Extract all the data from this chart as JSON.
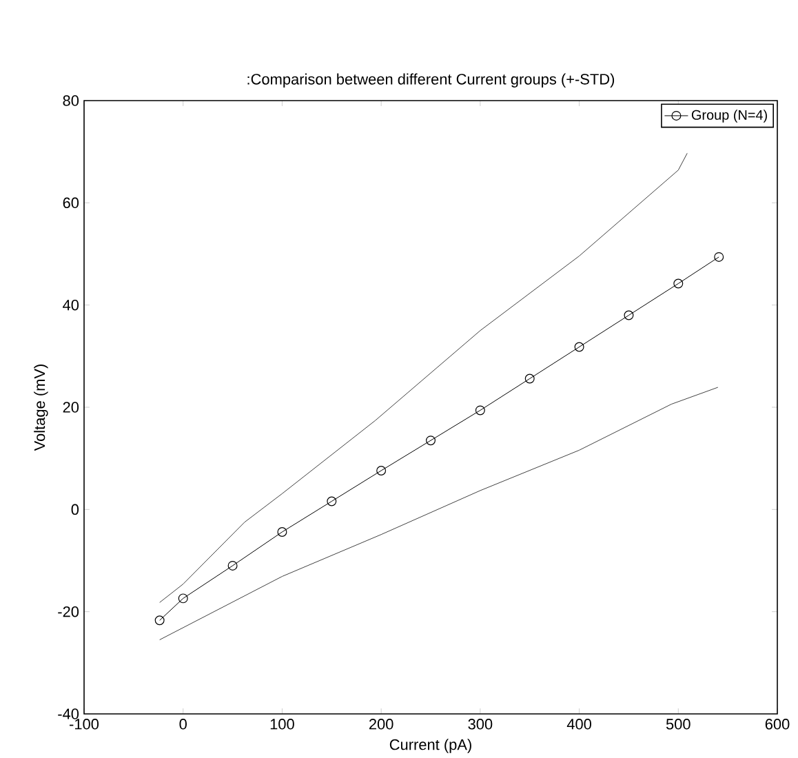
{
  "chart_data": {
    "type": "line",
    "title": ":Comparison between different Current groups (+-STD)",
    "xlabel": "Current (pA)",
    "ylabel": "Voltage (mV)",
    "xlim": [
      -100,
      600
    ],
    "ylim": [
      -40,
      80
    ],
    "xticks": [
      -100,
      0,
      100,
      200,
      300,
      400,
      500,
      600
    ],
    "yticks": [
      -40,
      -20,
      0,
      20,
      40,
      60,
      80
    ],
    "grid": false,
    "legend": "top right",
    "series": [
      {
        "name": "Group  (N=4)",
        "color": "#000000",
        "marker": "circle",
        "x": [
          -23.7,
          0,
          50,
          100,
          150,
          200,
          250,
          300,
          350,
          400,
          450,
          500,
          541
        ],
        "values": [
          -21.7,
          -17.4,
          -11,
          -4.4,
          1.6,
          7.6,
          13.5,
          19.4,
          25.6,
          31.8,
          38,
          44.2,
          49.4
        ]
      },
      {
        "color": "#404040",
        "marker": "none",
        "x": [
          -23.7,
          0,
          62,
          100,
          194,
          300,
          400,
          500,
          509
        ],
        "values": [
          -18.2,
          -14.6,
          -2.5,
          3.1,
          17.4,
          35,
          49.6,
          66.4,
          69.7
        ]
      },
      {
        "color": "#404040",
        "marker": "none",
        "x": [
          -23.7,
          100,
          200,
          300,
          400,
          493,
          540
        ],
        "values": [
          -25.5,
          -13.1,
          -4.9,
          3.7,
          11.6,
          20.6,
          23.9
        ]
      }
    ]
  }
}
